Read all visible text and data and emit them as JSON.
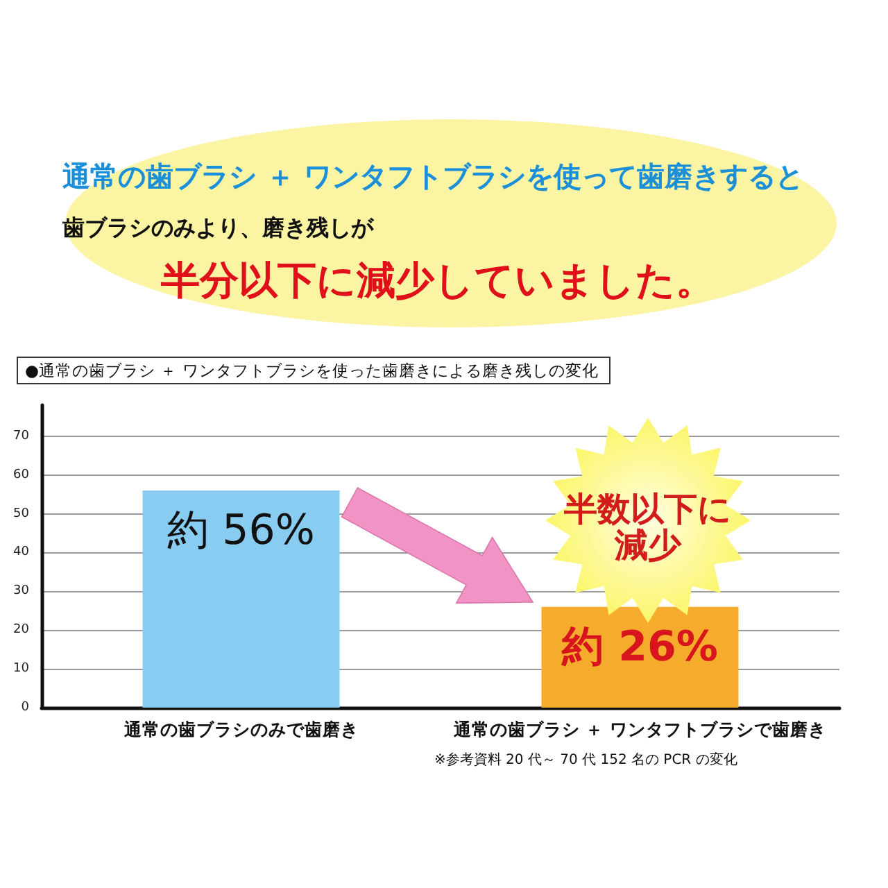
{
  "chart_data": {
    "type": "bar",
    "title": "●通常の歯ブラシ ＋ ワンタフトブラシを使った歯磨きによる磨き残しの変化",
    "categories": [
      "通常の歯ブラシのみで歯磨き",
      "通常の歯ブラシ ＋ ワンタフトブラシで歯磨き"
    ],
    "values": [
      56,
      26
    ],
    "colors": [
      "#88cdf1",
      "#f5ab2b"
    ],
    "value_labels": [
      "約 56%",
      "約 26%"
    ],
    "ylim": [
      0,
      78
    ],
    "yticks": [
      0,
      10,
      20,
      30,
      40,
      50,
      60,
      70
    ],
    "grid": "y",
    "annotations": [
      "通常の歯ブラシ ＋ ワンタフトブラシを使って歯磨きすると",
      "歯ブラシのみより、磨き残しが",
      "半分以下に減少していました。",
      "半数以下に減少",
      "※参考資料 20 代～ 70 代 152 名の PCR の変化"
    ]
  }
}
